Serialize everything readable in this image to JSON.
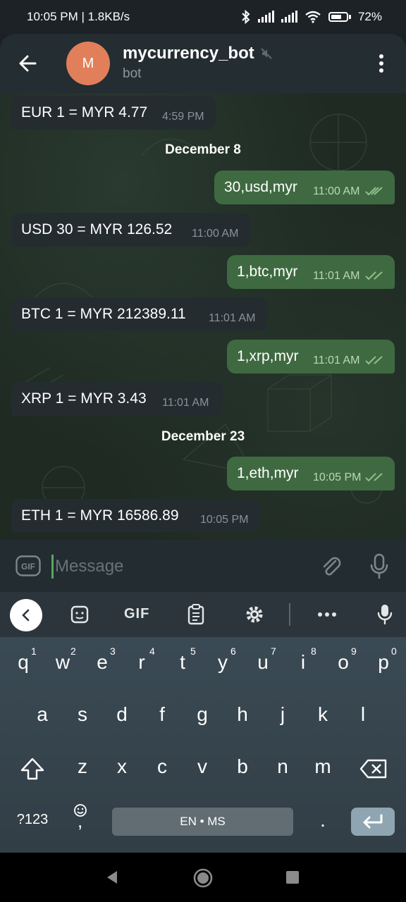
{
  "status_bar": {
    "time_speed": "10:05 PM | 1.8KB/s",
    "battery": "72%"
  },
  "header": {
    "avatar_letter": "M",
    "title": "mycurrency_bot",
    "subtitle": "bot"
  },
  "chat": {
    "messages": [
      {
        "dir": "in",
        "text": "EUR 1 = MYR 4.77",
        "time": "4:59 PM"
      },
      {
        "dir": "out",
        "text": "30,usd,myr",
        "time": "11:00 AM"
      },
      {
        "dir": "in",
        "text": "USD 30 = MYR 126.52",
        "time": "11:00 AM"
      },
      {
        "dir": "out",
        "text": "1,btc,myr",
        "time": "11:01 AM"
      },
      {
        "dir": "in",
        "text": "BTC 1 = MYR 212389.11",
        "time": "11:01 AM"
      },
      {
        "dir": "out",
        "text": "1,xrp,myr",
        "time": "11:01 AM"
      },
      {
        "dir": "in",
        "text": "XRP 1 = MYR 3.43",
        "time": "11:01 AM"
      },
      {
        "dir": "out",
        "text": "1,eth,myr",
        "time": "10:05 PM"
      },
      {
        "dir": "in",
        "text": "ETH 1 = MYR 16586.89",
        "time": "10:05 PM"
      }
    ],
    "date_separators": [
      "December 8",
      "December 23"
    ]
  },
  "input": {
    "placeholder": "Message"
  },
  "keyboard": {
    "toolbar": {
      "gif_label": "GIF"
    },
    "row1": [
      "q",
      "w",
      "e",
      "r",
      "t",
      "y",
      "u",
      "i",
      "o",
      "p"
    ],
    "row1_hints": [
      "1",
      "2",
      "3",
      "4",
      "5",
      "6",
      "7",
      "8",
      "9",
      "0"
    ],
    "row2": [
      "a",
      "s",
      "d",
      "f",
      "g",
      "h",
      "j",
      "k",
      "l"
    ],
    "row3": [
      "z",
      "x",
      "c",
      "v",
      "b",
      "n",
      "m"
    ],
    "symbols_label": "?123",
    "emoji_comma": ",",
    "space_label": "EN • MS",
    "period": "."
  },
  "colors": {
    "outgoing_bubble": "#3f6a41",
    "incoming_bubble": "#242c30",
    "avatar": "#e17f5a",
    "accent": "#5aa55e"
  }
}
